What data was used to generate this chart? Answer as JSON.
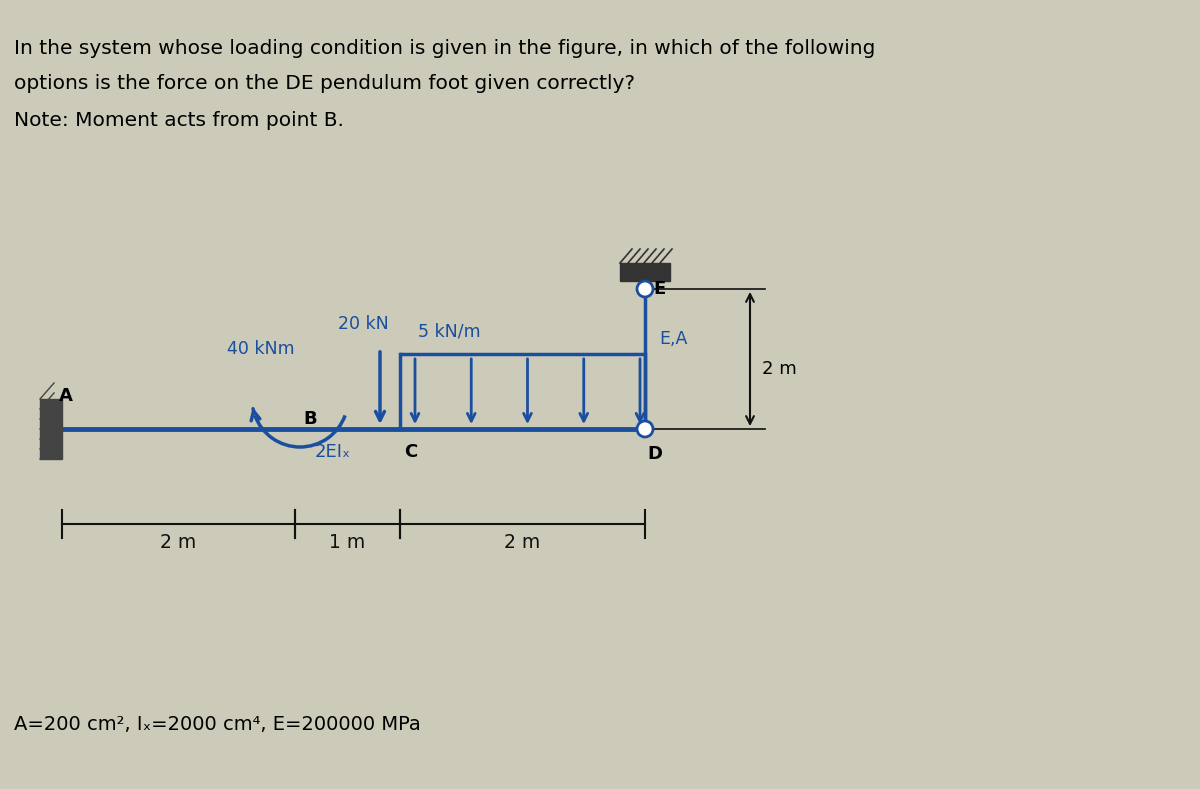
{
  "bg_color": "#cccab8",
  "text_color": "#000000",
  "blue_color": "#1a4fa0",
  "dark_color": "#111111",
  "title_line1": "In the system whose loading condition is given in the figure, in which of the following",
  "title_line2": "options is the force on the DE pendulum foot given correctly?",
  "note_line": "Note: Moment acts from point B.",
  "bottom_note": "A=200 cm², Iₓ=2000 cm⁴, E=200000 MPa",
  "moment_label": "40 kNm",
  "force_label": "20 kN",
  "dist_load_label": "5 kN/m",
  "ea_label": "E,A",
  "dim_2m_right": "2 m",
  "dim_2m_left": "2 m",
  "dim_1m": "1 m",
  "dim_2m_bottom": "2 m",
  "label_A": "A",
  "label_B": "B",
  "label_C": "C",
  "label_D": "D",
  "label_E": "E",
  "label_2EI": "2EIₓ"
}
